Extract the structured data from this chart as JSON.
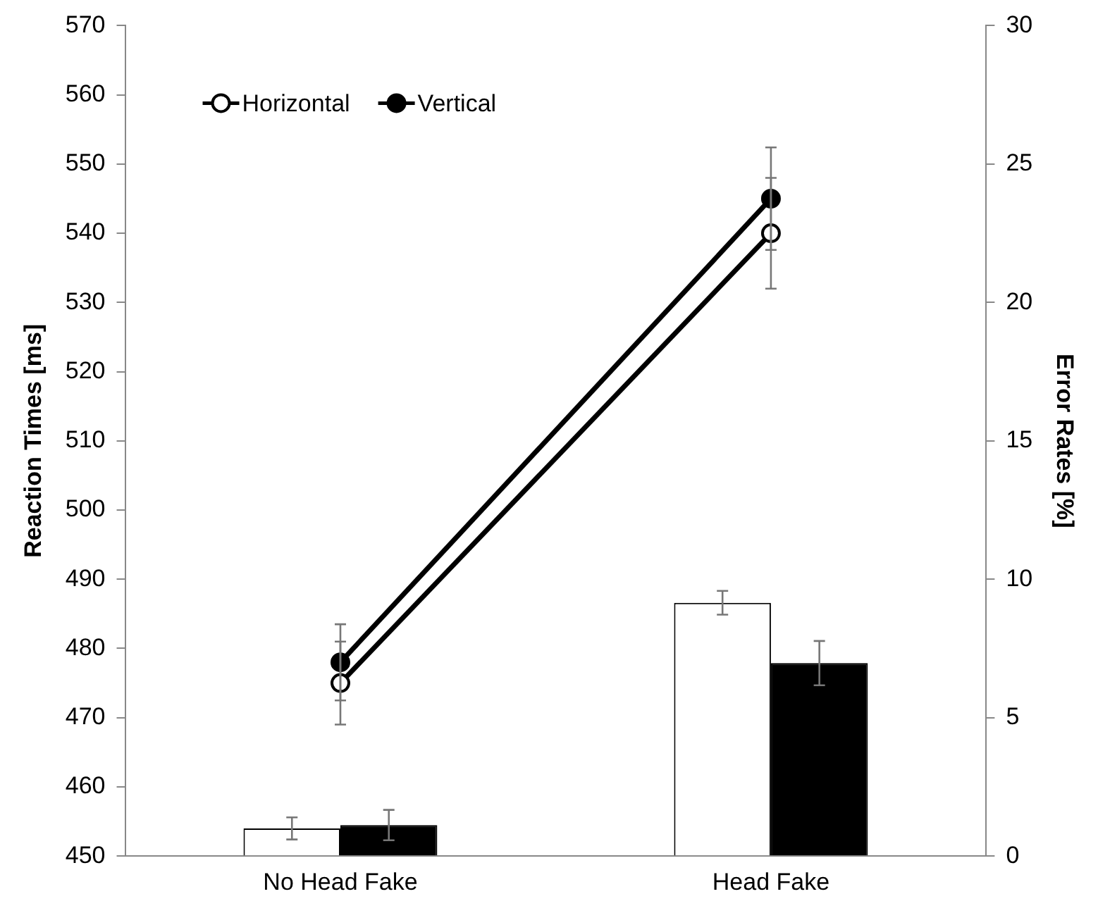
{
  "chart_data": {
    "type": "line",
    "ylabel": "Reaction Times [ms]",
    "y2label": "Error Rates [%]",
    "categories": [
      "No Head Fake",
      "Head Fake"
    ],
    "series": [
      {
        "type": "bar",
        "axis": "y2",
        "color": "#ffffff",
        "values": [
          1.0,
          9.15
        ],
        "errors": [
          0.4,
          0.43
        ]
      },
      {
        "type": "bar",
        "axis": "y2",
        "color": "#000000",
        "values": [
          1.12,
          6.97
        ],
        "errors": [
          0.55,
          0.8
        ]
      },
      {
        "name": "Horizontal",
        "color": "#ffffff",
        "values": [
          475,
          540
        ],
        "errors": [
          6,
          8
        ]
      },
      {
        "name": "Vertical",
        "color": "#000000",
        "values": [
          478,
          545
        ],
        "errors": [
          5.5,
          7.4
        ]
      }
    ],
    "ylim": [
      450,
      570
    ],
    "yticks": [
      450,
      460,
      470,
      480,
      490,
      500,
      510,
      520,
      530,
      540,
      550,
      560,
      570
    ],
    "y2lim": [
      0,
      30
    ],
    "y2ticks": [
      0,
      5,
      10,
      15,
      20,
      25,
      30
    ],
    "grid": false,
    "legend": "top left",
    "marker": "circle"
  }
}
